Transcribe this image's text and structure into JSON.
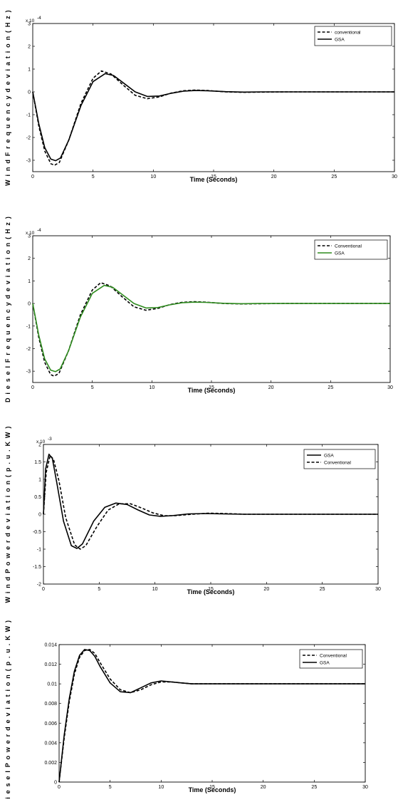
{
  "chart_data": [
    {
      "type": "line",
      "xlabel": "Time (Seconds)",
      "ylabel": "W i n d  F r e q u e n c y   d e v i a t i o n  ( H z )",
      "y_exponent": "x 10",
      "y_exponent_power": "-4",
      "xlim": [
        0,
        30
      ],
      "ylim": [
        -3.5,
        3
      ],
      "x_ticks": [
        "0",
        "5",
        "10",
        "15",
        "20",
        "25",
        "30"
      ],
      "y_ticks": [
        "-3",
        "-2",
        "-1",
        "0",
        "1",
        "2",
        "3"
      ],
      "grid": false,
      "legend_position": "top-right",
      "series": [
        {
          "name": "conventional",
          "style": "dashed",
          "color": "#000000",
          "x": [
            0,
            0.5,
            1,
            1.5,
            1.8,
            2.2,
            3,
            4,
            5,
            5.7,
            6.5,
            7.5,
            8.5,
            9.5,
            10.5,
            11.5,
            12.5,
            13.5,
            14.5,
            16,
            17.5,
            19,
            21,
            25,
            30
          ],
          "y": [
            0,
            -1.5,
            -2.6,
            -3.15,
            -3.22,
            -3.1,
            -2.1,
            -0.5,
            0.6,
            0.92,
            0.78,
            0.3,
            -0.15,
            -0.3,
            -0.22,
            -0.05,
            0.05,
            0.08,
            0.06,
            0.0,
            -0.02,
            -0.01,
            0.0,
            0.0,
            0.0
          ]
        },
        {
          "name": "GSA",
          "style": "solid",
          "color": "#000000",
          "x": [
            0,
            0.5,
            1,
            1.5,
            1.9,
            2.3,
            3,
            4,
            5,
            6,
            6.7,
            7.5,
            8.5,
            9.5,
            10.5,
            11.5,
            12.5,
            13.5,
            14.5,
            16,
            17.5,
            19,
            21,
            25,
            30
          ],
          "y": [
            0,
            -1.4,
            -2.45,
            -2.95,
            -3.02,
            -2.9,
            -2.1,
            -0.6,
            0.45,
            0.8,
            0.72,
            0.4,
            0.0,
            -0.2,
            -0.18,
            -0.06,
            0.03,
            0.06,
            0.05,
            0.01,
            -0.01,
            0.0,
            0.0,
            0.0,
            0.0
          ]
        }
      ]
    },
    {
      "type": "line",
      "xlabel": "Time (Seconds)",
      "ylabel": "D i e s e l  F r e q u e n c y   d e v i a t i o n  ( H z )",
      "y_exponent": "x 10",
      "y_exponent_power": "-4",
      "xlim": [
        0,
        30
      ],
      "ylim": [
        -3.5,
        3
      ],
      "x_ticks": [
        "0",
        "5",
        "10",
        "15",
        "20",
        "25",
        "30"
      ],
      "y_ticks": [
        "-3",
        "-2",
        "-1",
        "0",
        "1",
        "2",
        "3"
      ],
      "grid": false,
      "legend_position": "top-right",
      "series": [
        {
          "name": "Conventional",
          "style": "dashed",
          "color": "#000000",
          "x": [
            0,
            0.5,
            1,
            1.5,
            1.8,
            2.2,
            3,
            4,
            5,
            5.7,
            6.5,
            7.5,
            8.5,
            9.5,
            10.5,
            11.5,
            12.5,
            13.5,
            14.5,
            16,
            17.5,
            19,
            21,
            25,
            30
          ],
          "y": [
            0,
            -1.5,
            -2.6,
            -3.15,
            -3.22,
            -3.1,
            -2.1,
            -0.5,
            0.6,
            0.92,
            0.78,
            0.3,
            -0.15,
            -0.3,
            -0.22,
            -0.05,
            0.05,
            0.08,
            0.06,
            0.0,
            -0.02,
            -0.01,
            0.0,
            0.0,
            0.0
          ]
        },
        {
          "name": "GSA",
          "style": "solid",
          "color": "#2e8b1e",
          "x": [
            0,
            0.5,
            1,
            1.5,
            1.9,
            2.3,
            3,
            4,
            5,
            6,
            6.7,
            7.5,
            8.5,
            9.5,
            10.5,
            11.5,
            12.5,
            13.5,
            14.5,
            16,
            17.5,
            19,
            21,
            25,
            30
          ],
          "y": [
            0,
            -1.4,
            -2.45,
            -2.95,
            -3.02,
            -2.9,
            -2.1,
            -0.6,
            0.45,
            0.8,
            0.72,
            0.4,
            0.0,
            -0.2,
            -0.18,
            -0.06,
            0.03,
            0.06,
            0.05,
            0.01,
            -0.01,
            0.0,
            0.0,
            0.0,
            0.0
          ]
        }
      ]
    },
    {
      "type": "line",
      "xlabel": "Time (Seconds)",
      "ylabel": "W i n d  P o w e r  d e v i a t i o n  ( p . u . K W )",
      "y_exponent": "x 10",
      "y_exponent_power": "-3",
      "xlim": [
        0,
        30
      ],
      "ylim": [
        -2,
        2
      ],
      "x_ticks": [
        "0",
        "5",
        "10",
        "15",
        "20",
        "25",
        "30"
      ],
      "y_ticks": [
        "-2",
        "-1.5",
        "-1",
        "-0.5",
        "0",
        "0.5",
        "1",
        "1.5",
        "2"
      ],
      "grid": false,
      "legend_position": "top-right",
      "series": [
        {
          "name": "GSA",
          "style": "solid",
          "color": "#000000",
          "x": [
            0,
            0.2,
            0.5,
            0.8,
            1.2,
            1.8,
            2.5,
            3.0,
            3.5,
            4.5,
            5.5,
            6.5,
            7.5,
            8.5,
            9.5,
            10.5,
            11.5,
            13,
            14.5,
            16,
            18,
            20,
            24,
            30
          ],
          "y": [
            0,
            1.3,
            1.72,
            1.6,
            0.9,
            -0.2,
            -0.9,
            -0.98,
            -0.85,
            -0.2,
            0.2,
            0.32,
            0.28,
            0.12,
            -0.02,
            -0.06,
            -0.04,
            0.01,
            0.02,
            0.01,
            0.0,
            0.0,
            0.0,
            0.0
          ]
        },
        {
          "name": "Conventional",
          "style": "dashed",
          "color": "#000000",
          "x": [
            0,
            0.25,
            0.6,
            0.9,
            1.4,
            2.0,
            2.8,
            3.3,
            3.8,
            4.8,
            5.8,
            6.8,
            7.8,
            8.8,
            9.8,
            10.8,
            11.8,
            13.3,
            14.8,
            16.3,
            18,
            20,
            24,
            30
          ],
          "y": [
            0,
            1.2,
            1.68,
            1.58,
            0.95,
            -0.1,
            -0.88,
            -1.0,
            -0.9,
            -0.35,
            0.12,
            0.3,
            0.3,
            0.18,
            0.04,
            -0.04,
            -0.04,
            0.0,
            0.03,
            0.02,
            0.0,
            0.0,
            0.0,
            0.0
          ]
        }
      ]
    },
    {
      "type": "line",
      "xlabel": "Time (Seconds)",
      "ylabel": "D i e s e l  P o w e r  d e v i a t i o n  ( p . u . K W )",
      "xlim": [
        0,
        30
      ],
      "ylim": [
        0,
        0.014
      ],
      "x_ticks": [
        "0",
        "5",
        "10",
        "15",
        "20",
        "25",
        "30"
      ],
      "y_ticks": [
        "0",
        "0.002",
        "0.004",
        "0.006",
        "0.008",
        "0.01",
        "0.012",
        "0.014"
      ],
      "grid": false,
      "legend_position": "top-right",
      "series": [
        {
          "name": "Conventional",
          "style": "dashed",
          "color": "#000000",
          "x": [
            0,
            0.5,
            1,
            1.5,
            2,
            2.5,
            3,
            3.5,
            4,
            5,
            6,
            7,
            8,
            9,
            10,
            11,
            12,
            13,
            14,
            16,
            18,
            20,
            25,
            30
          ],
          "y": [
            0,
            0.0045,
            0.0082,
            0.011,
            0.0127,
            0.0134,
            0.0135,
            0.0131,
            0.0122,
            0.0105,
            0.0094,
            0.0091,
            0.0094,
            0.0099,
            0.0102,
            0.0102,
            0.0101,
            0.01,
            0.01,
            0.01,
            0.01,
            0.01,
            0.01,
            0.01
          ]
        },
        {
          "name": "GSA",
          "style": "solid",
          "color": "#000000",
          "x": [
            0,
            0.5,
            1,
            1.5,
            2,
            2.5,
            3,
            3.5,
            4,
            5,
            6,
            7,
            8,
            9,
            10,
            11,
            12,
            13,
            14,
            16,
            18,
            20,
            25,
            30
          ],
          "y": [
            0,
            0.0048,
            0.0085,
            0.0113,
            0.0129,
            0.0135,
            0.0134,
            0.0128,
            0.0118,
            0.0101,
            0.0092,
            0.0091,
            0.0096,
            0.0101,
            0.0103,
            0.0102,
            0.0101,
            0.01,
            0.01,
            0.01,
            0.01,
            0.01,
            0.01,
            0.01
          ]
        }
      ]
    }
  ]
}
